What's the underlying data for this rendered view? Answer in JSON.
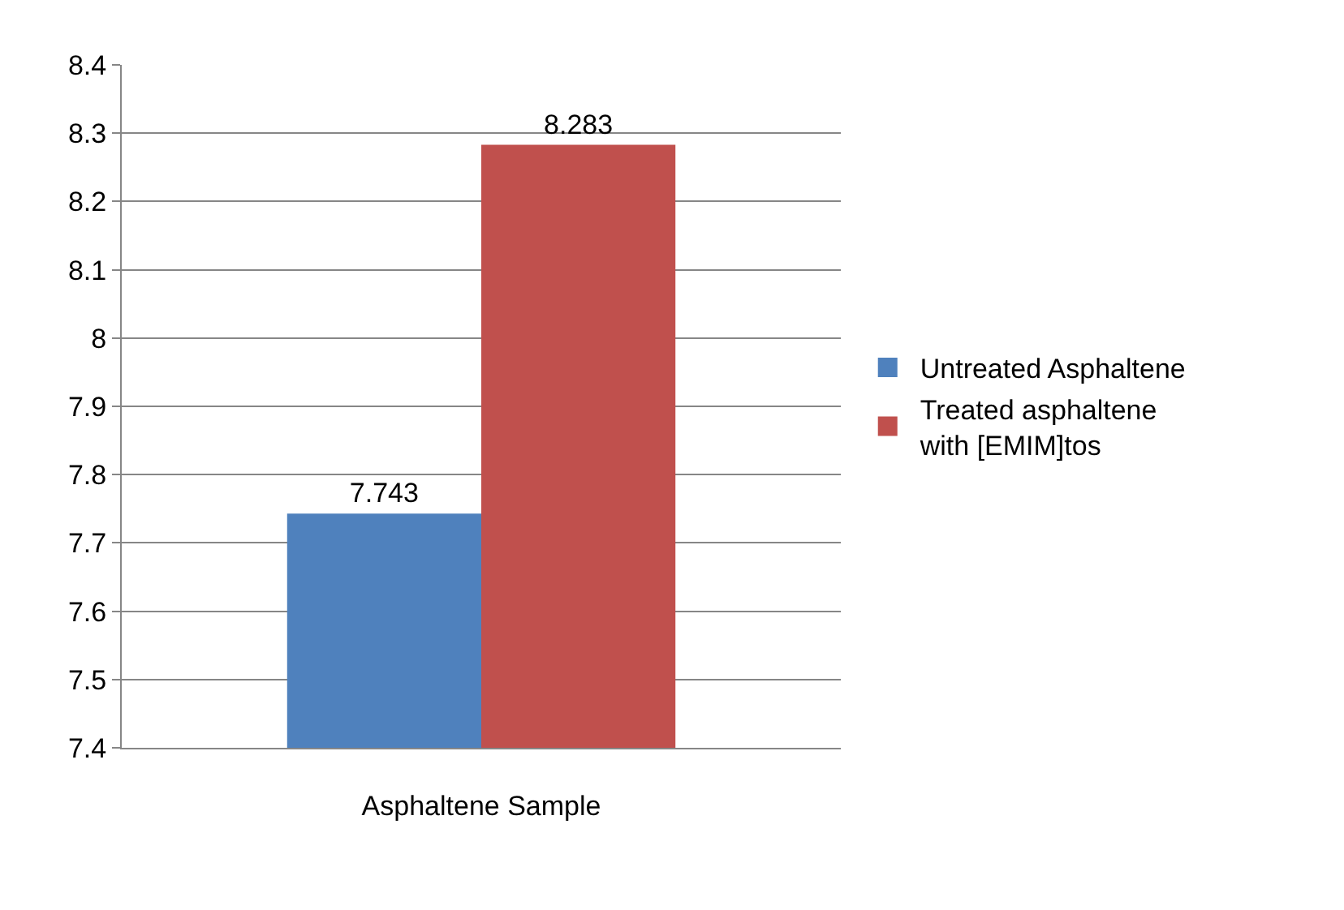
{
  "chart_data": {
    "type": "bar",
    "categories": [
      "Asphaltene Sample"
    ],
    "series": [
      {
        "name": "Untreated Asphaltene",
        "color": "#4f81bd",
        "values": [
          7.743
        ]
      },
      {
        "name": "Treated asphaltene with [EMIM]tos",
        "color": "#c0504d",
        "values": [
          8.283
        ]
      }
    ],
    "ylim": [
      7.4,
      8.4
    ],
    "yticks": [
      7.4,
      7.5,
      7.6,
      7.7,
      7.8,
      7.9,
      8,
      8.1,
      8.2,
      8.3,
      8.4
    ],
    "grid": "y",
    "legend": "right",
    "data_labels": true
  }
}
